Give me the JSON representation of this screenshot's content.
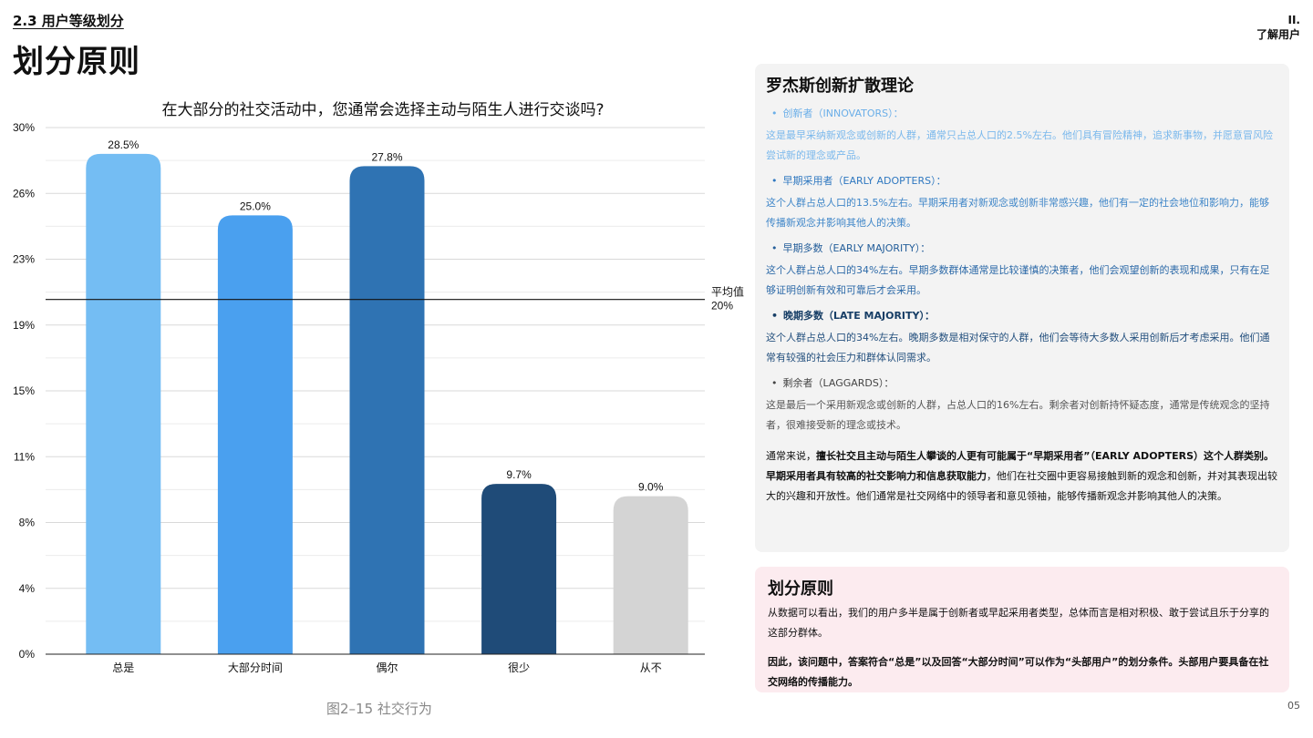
{
  "header": {
    "section_label": "2.3 用户等级划分",
    "page_title": "划分原则",
    "chapter_num": "II.",
    "chapter_name": "了解用户",
    "page_number": "05"
  },
  "figure": {
    "caption": "图2–15 社交行为"
  },
  "chart_data": {
    "type": "bar",
    "title": "在大部分的社交活动中，您通常会选择主动与陌生人进行交谈吗?",
    "categories": [
      "总是",
      "大部分时间",
      "偶尔",
      "很少",
      "从不"
    ],
    "values": [
      28.5,
      25.0,
      27.8,
      9.7,
      9.0
    ],
    "value_labels": [
      "28.5%",
      "25.0%",
      "27.8%",
      "9.7%",
      "9.0%"
    ],
    "colors": [
      "#74bdf3",
      "#4aa0ef",
      "#2f73b3",
      "#1f4b78",
      "#d4d4d4"
    ],
    "ylim": [
      0,
      30
    ],
    "yticks": [
      0,
      3.75,
      7.5,
      11.25,
      15,
      18.75,
      22.5,
      26.25,
      30
    ],
    "ytick_labels": [
      "0%",
      "4%",
      "8%",
      "11%",
      "15%",
      "19%",
      "23%",
      "26%",
      "30%"
    ],
    "grid": true,
    "reference_line": {
      "value": 20,
      "label_top": "平均值",
      "label_bottom": "20%"
    }
  },
  "theory": {
    "title": "罗杰斯创新扩散理论",
    "items": [
      {
        "bullet": "•",
        "head": "创新者（INNOVATORS）：",
        "body": "这是最早采纳新观念或创新的人群，通常只占总人口的2.5%左右。他们具有冒险精神，追求新事物，并愿意冒风险尝试新的理念或产品。"
      },
      {
        "bullet": "•",
        "head": "早期采用者（EARLY ADOPTERS）：",
        "body": "这个人群占总人口的13.5%左右。早期采用者对新观念或创新非常感兴趣，他们有一定的社会地位和影响力，能够传播新观念并影响其他人的决策。"
      },
      {
        "bullet": "•",
        "head": "早期多数（EARLY MAJORITY）：",
        "body": "这个人群占总人口的34%左右。早期多数群体通常是比较谨慎的决策者，他们会观望创新的表现和成果，只有在足够证明创新有效和可靠后才会采用。"
      },
      {
        "bullet": "•",
        "head": "晚期多数（LATE MAJORITY）：",
        "body": "这个人群占总人口的34%左右。晚期多数是相对保守的人群，他们会等待大多数人采用创新后才考虑采用。他们通常有较强的社会压力和群体认同需求。"
      },
      {
        "bullet": "•",
        "head": "剩余者（LAGGARDS）：",
        "body": "这是最后一个采用新观念或创新的人群，占总人口的16%左右。剩余者对创新持怀疑态度，通常是传统观念的坚持者，很难接受新的理念或技术。"
      }
    ],
    "summary_prefix": "通常来说，",
    "summary_bold": "擅长社交且主动与陌生人攀谈的人更有可能属于“早期采用者”（EARLY ADOPTERS）这个人群类别。早期采用者具有较高的社交影响力和信息获取能力",
    "summary_rest": "，他们在社交圈中更容易接触到新的观念和创新，并对其表现出较大的兴趣和开放性。他们通常是社交网络中的领导者和意见领袖，能够传播新观念并影响其他人的决策。"
  },
  "principle": {
    "title": "划分原则",
    "body": "从数据可以看出，我们的用户多半是属于创新者或早起采用者类型，总体而言是相对积极、敢于尝试且乐于分享的这部分群体。",
    "conclusion": "因此，该问题中，答案符合“总是”以及回答“大部分时间”可以作为“头部用户”的划分条件。头部用户要具备在社交网络的传播能力。"
  }
}
